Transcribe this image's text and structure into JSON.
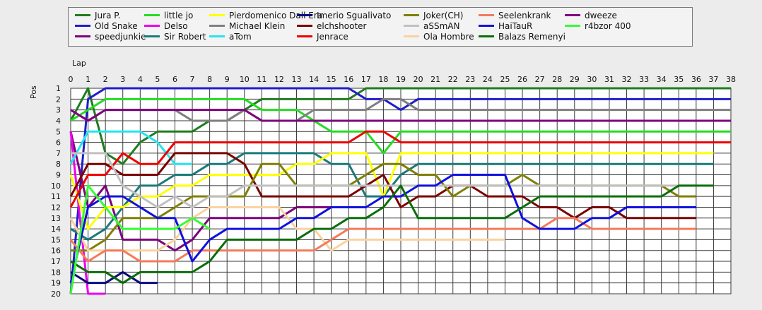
{
  "chart_data": {
    "type": "line",
    "xlabel": "Lap",
    "ylabel": "Pos",
    "xlim": [
      0,
      38
    ],
    "ylim": [
      1,
      20
    ],
    "y_inverted": true,
    "grid": true,
    "legend": "top",
    "x_ticks": [
      0,
      1,
      2,
      3,
      4,
      5,
      6,
      7,
      8,
      9,
      10,
      11,
      12,
      13,
      14,
      15,
      16,
      17,
      18,
      19,
      20,
      21,
      22,
      23,
      24,
      25,
      26,
      27,
      28,
      29,
      30,
      31,
      32,
      33,
      34,
      35,
      36,
      37,
      38
    ],
    "y_ticks": [
      1,
      2,
      3,
      4,
      5,
      6,
      7,
      8,
      9,
      10,
      11,
      12,
      13,
      14,
      15,
      16,
      17,
      18,
      19,
      20
    ],
    "series": [
      {
        "name": "Jura P.",
        "color": "#1e7d1e",
        "values": [
          4,
          1,
          7,
          8,
          6,
          5,
          5,
          5,
          4,
          4,
          3,
          2,
          2,
          2,
          2,
          2,
          2,
          1,
          1,
          1,
          1,
          1,
          1,
          1,
          1,
          1,
          1,
          1,
          1,
          1,
          1,
          1,
          1,
          1,
          1,
          1,
          1,
          1,
          1
        ]
      },
      {
        "name": "Old Snake",
        "color": "#1f1fc8",
        "values": [
          20,
          2,
          1,
          1,
          1,
          1,
          1,
          1,
          1,
          1,
          1,
          1,
          1,
          1,
          1,
          1,
          1,
          2,
          2,
          3,
          2,
          2,
          2,
          2,
          2,
          2,
          2,
          2,
          2,
          2,
          2,
          2,
          2,
          2,
          2,
          2,
          2,
          2,
          2
        ]
      },
      {
        "name": "speedjunkie",
        "color": "#7d007d",
        "values": [
          5,
          12,
          10,
          15,
          15,
          15,
          16,
          15,
          13,
          13,
          13,
          13,
          13,
          12,
          12,
          12
        ]
      },
      {
        "name": "little jo",
        "color": "#22dd22",
        "values": [
          4,
          3,
          2,
          2,
          2,
          2,
          2,
          2,
          2,
          2,
          2,
          3,
          3,
          3,
          4,
          5,
          5,
          5,
          7,
          5,
          5,
          5,
          5,
          5,
          5,
          5,
          5,
          5,
          5,
          5,
          5,
          5,
          5,
          5,
          5,
          5,
          5,
          5,
          5
        ]
      },
      {
        "name": "Delso",
        "color": "#ee00ee",
        "values": [
          5,
          20,
          20
        ]
      },
      {
        "name": "Sir Robert",
        "color": "#1a7a7a",
        "values": [
          14,
          15,
          14,
          12,
          10,
          10,
          9,
          9,
          8,
          8,
          7,
          7,
          7,
          7,
          7,
          8,
          8,
          11,
          11,
          9,
          8,
          8,
          8,
          8,
          8,
          8,
          8,
          8,
          8,
          8,
          8,
          8,
          8,
          8,
          8,
          8,
          8,
          8
        ]
      },
      {
        "name": "Pierdomenico Dall Era",
        "color": "#ffff00",
        "values": [
          9,
          14,
          12,
          12,
          11,
          11,
          10,
          10,
          9,
          9,
          9,
          9,
          9,
          8,
          8,
          7,
          7,
          7,
          11,
          7,
          7,
          7,
          7,
          7,
          7,
          7,
          7,
          7,
          7,
          7,
          7,
          7,
          7,
          7,
          7,
          7,
          7,
          7
        ]
      },
      {
        "name": "Michael Klein",
        "color": "#7f7f7f",
        "values": [
          3,
          4,
          3,
          3,
          3,
          3,
          3,
          4,
          4,
          4,
          3,
          4,
          4,
          4,
          3,
          3,
          3,
          3,
          2,
          2,
          3,
          3,
          3,
          3,
          3,
          3,
          3,
          3,
          3,
          3,
          3,
          3,
          3,
          3,
          3,
          3,
          3,
          3,
          3
        ]
      },
      {
        "name": "aTom",
        "color": "#22e6ee",
        "values": [
          8,
          5,
          5,
          5,
          5,
          6,
          8,
          8
        ]
      },
      {
        "name": "Imerio Sgualivato",
        "color": "#0a0a80",
        "values": [
          18,
          19,
          19,
          18,
          19,
          19
        ]
      },
      {
        "name": "elchshooter",
        "color": "#7a0000",
        "values": [
          11,
          8,
          8,
          9,
          9,
          9,
          7,
          7,
          7,
          7,
          8,
          11,
          11,
          11,
          11,
          11,
          11,
          10,
          9,
          12,
          11,
          11,
          10,
          10,
          11,
          11,
          11,
          12,
          12,
          13,
          12,
          12,
          13,
          13,
          13,
          13,
          13
        ]
      },
      {
        "name": "Jenrace",
        "color": "#ee0000",
        "values": [
          12,
          9,
          9,
          7,
          8,
          8,
          6,
          6,
          6,
          6,
          6,
          6,
          6,
          6,
          6,
          6,
          6,
          5,
          5,
          6,
          6,
          6,
          6,
          6,
          6,
          6,
          6,
          6,
          6,
          6,
          6,
          6,
          6,
          6,
          6,
          6,
          6,
          6,
          6
        ]
      },
      {
        "name": "Joker(CH)",
        "color": "#7f7f00",
        "values": [
          16,
          16,
          15,
          13,
          13,
          13,
          12,
          11,
          11,
          11,
          11,
          8,
          8,
          10,
          10,
          10,
          10,
          9,
          8,
          8,
          9,
          9,
          11,
          10,
          10,
          10,
          9,
          10,
          10,
          10,
          10,
          10,
          10,
          10,
          10,
          11,
          11
        ]
      },
      {
        "name": "aSSmAN",
        "color": "#c0c0c0",
        "values": [
          7,
          7,
          7,
          10,
          11,
          12,
          11,
          12,
          11,
          11,
          10,
          10,
          10,
          10,
          10,
          10,
          10,
          10,
          10,
          10,
          10,
          10,
          10,
          10,
          10,
          10,
          10,
          10,
          10,
          10,
          10,
          10,
          10,
          10,
          10,
          10,
          10
        ]
      },
      {
        "name": "Ola Hombre",
        "color": "#fad2a0",
        "values": [
          13,
          16,
          16,
          16,
          16,
          16,
          15,
          13,
          12,
          12,
          12,
          12,
          12,
          14,
          14,
          16,
          15,
          15,
          15,
          15,
          15,
          15,
          15,
          15,
          15,
          15
        ]
      },
      {
        "name": "Seelenkrank",
        "color": "#f57a5a",
        "values": [
          15,
          17,
          16,
          16,
          17,
          17,
          17,
          16,
          16,
          16,
          16,
          16,
          16,
          16,
          16,
          15,
          14,
          14,
          14,
          14,
          14,
          14,
          14,
          14,
          14,
          14,
          14,
          14,
          13,
          13,
          14,
          14,
          14,
          14,
          14,
          14,
          14
        ]
      },
      {
        "name": "HaiTauR",
        "color": "#1010e0",
        "values": [
          19,
          12,
          11,
          11,
          12,
          13,
          13,
          17,
          15,
          14,
          14,
          14,
          14,
          13,
          13,
          12,
          12,
          12,
          11,
          11,
          10,
          10,
          9,
          9,
          9,
          9,
          13,
          14,
          14,
          14,
          13,
          13,
          12,
          12,
          12,
          12,
          12
        ]
      },
      {
        "name": "Balazs Remenyi",
        "color": "#0a6e0a",
        "values": [
          17,
          18,
          18,
          19,
          18,
          18,
          18,
          18,
          17,
          15,
          15,
          15,
          15,
          15,
          14,
          14,
          13,
          13,
          12,
          10,
          13,
          13,
          13,
          13,
          13,
          13,
          12,
          11,
          11,
          11,
          11,
          11,
          11,
          11,
          11,
          10,
          10,
          10
        ]
      },
      {
        "name": "dweeze",
        "color": "#800080",
        "values": [
          3,
          4,
          3,
          3,
          3,
          3,
          3,
          3,
          3,
          3,
          3,
          4,
          4,
          4,
          4,
          4,
          4,
          4,
          4,
          4,
          4,
          4,
          4,
          4,
          4,
          4,
          4,
          4,
          4,
          4,
          4,
          4,
          4,
          4,
          4,
          4,
          4,
          4,
          4
        ]
      },
      {
        "name": "r4bzor 400",
        "color": "#33ff33",
        "values": [
          20,
          10,
          12,
          14,
          14,
          14,
          14,
          13,
          14
        ]
      }
    ]
  }
}
